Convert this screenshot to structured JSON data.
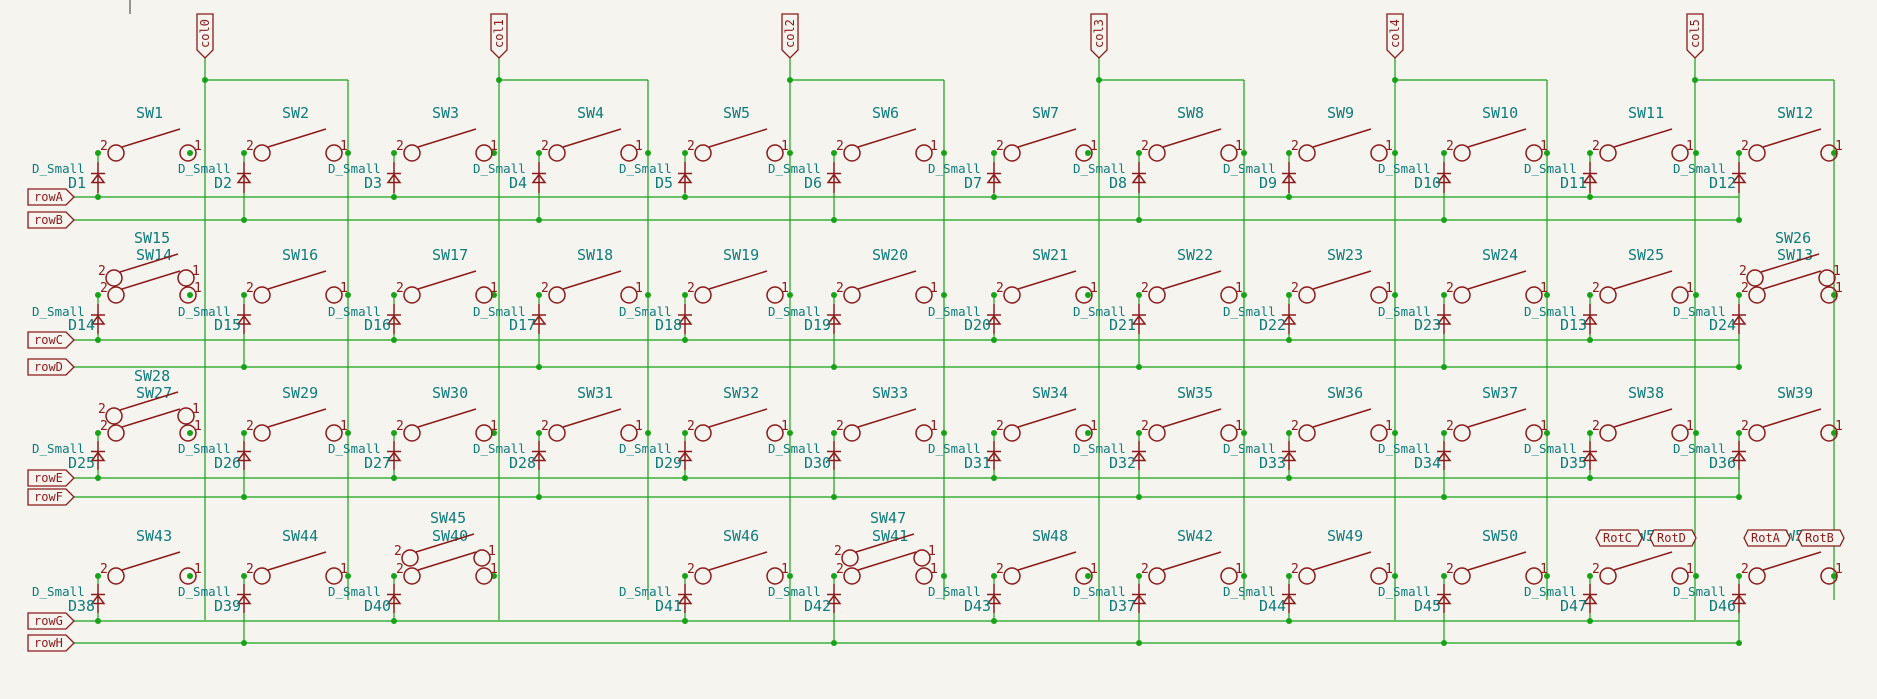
{
  "columns": [
    {
      "label": "col0"
    },
    {
      "label": "col1"
    },
    {
      "label": "col2"
    },
    {
      "label": "col3"
    },
    {
      "label": "col4"
    },
    {
      "label": "col5"
    }
  ],
  "rows": [
    {
      "label": "rowA"
    },
    {
      "label": "rowB"
    },
    {
      "label": "rowC"
    },
    {
      "label": "rowD"
    },
    {
      "label": "rowE"
    },
    {
      "label": "rowF"
    },
    {
      "label": "rowG"
    },
    {
      "label": "rowH"
    }
  ],
  "switch_value": "D_Small",
  "pin_labels": {
    "left": "2",
    "right": "1"
  },
  "band1": {
    "switches": [
      "SW1",
      "SW2",
      "SW3",
      "SW4",
      "SW5",
      "SW6",
      "SW7",
      "SW8",
      "SW9",
      "SW10",
      "SW11",
      "SW12"
    ],
    "diodes": [
      "D1",
      "D2",
      "D3",
      "D4",
      "D5",
      "D6",
      "D7",
      "D8",
      "D9",
      "D10",
      "D11",
      "D12"
    ]
  },
  "band2": {
    "switches": [
      "SW14",
      "SW16",
      "SW17",
      "SW18",
      "SW19",
      "SW20",
      "SW21",
      "SW22",
      "SW23",
      "SW24",
      "SW25",
      "SW13"
    ],
    "extra_switches": [
      "SW15",
      "SW26"
    ],
    "diodes": [
      "D14",
      "D15",
      "D16",
      "D17",
      "D18",
      "D19",
      "D20",
      "D21",
      "D22",
      "D23",
      "D13",
      "D24"
    ]
  },
  "band3": {
    "switches": [
      "SW27",
      "SW29",
      "SW30",
      "SW31",
      "SW32",
      "SW33",
      "SW34",
      "SW35",
      "SW36",
      "SW37",
      "SW38",
      "SW39"
    ],
    "extra_switches": [
      "SW28"
    ],
    "diodes": [
      "D25",
      "D26",
      "D27",
      "D28",
      "D29",
      "D30",
      "D31",
      "D32",
      "D33",
      "D34",
      "D35",
      "D36"
    ]
  },
  "band4": {
    "switches": [
      "SW43",
      "SW44",
      "SW40",
      "",
      "SW46",
      "SW41",
      "SW48",
      "SW42",
      "SW49",
      "SW50",
      "SW52",
      "SW54"
    ],
    "extra_switches": [
      "SW45",
      "SW47"
    ],
    "diodes": [
      "D38",
      "D39",
      "D40",
      "",
      "D41",
      "D42",
      "D43",
      "D37",
      "D44",
      "D45",
      "D47",
      "D46"
    ]
  },
  "rotary_labels": [
    "RotC",
    "RotD",
    "RotA",
    "RotB"
  ]
}
